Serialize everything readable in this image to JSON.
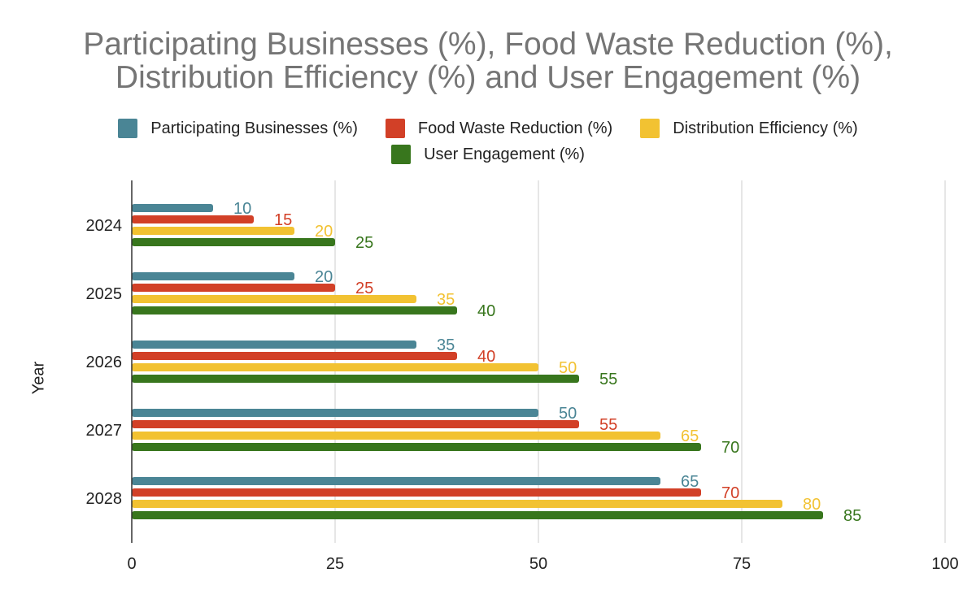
{
  "chart_data": {
    "type": "bar",
    "orientation": "horizontal",
    "title": "Participating Businesses (%), Food Waste Reduction (%), Distribution Efficiency (%) and User Engagement (%)",
    "title_lines": [
      "Participating Businesses (%), Food Waste Reduction (%),",
      "Distribution Efficiency (%) and User Engagement (%)"
    ],
    "ylabel": "Year",
    "xlabel": "",
    "categories": [
      "2024",
      "2025",
      "2026",
      "2027",
      "2028"
    ],
    "xlim": [
      0,
      100
    ],
    "x_ticks": [
      0,
      25,
      50,
      75,
      100
    ],
    "grid": true,
    "legend_position": "top",
    "series": [
      {
        "name": "Participating Businesses (%)",
        "color": "#4a8595",
        "values": [
          10,
          20,
          35,
          50,
          65
        ]
      },
      {
        "name": "Food Waste Reduction (%)",
        "color": "#d24027",
        "values": [
          15,
          25,
          40,
          55,
          70
        ]
      },
      {
        "name": "Distribution Efficiency (%)",
        "color": "#f2c232",
        "values": [
          20,
          35,
          50,
          65,
          80
        ]
      },
      {
        "name": "User Engagement (%)",
        "color": "#38761d",
        "values": [
          25,
          40,
          55,
          70,
          85
        ]
      }
    ]
  }
}
